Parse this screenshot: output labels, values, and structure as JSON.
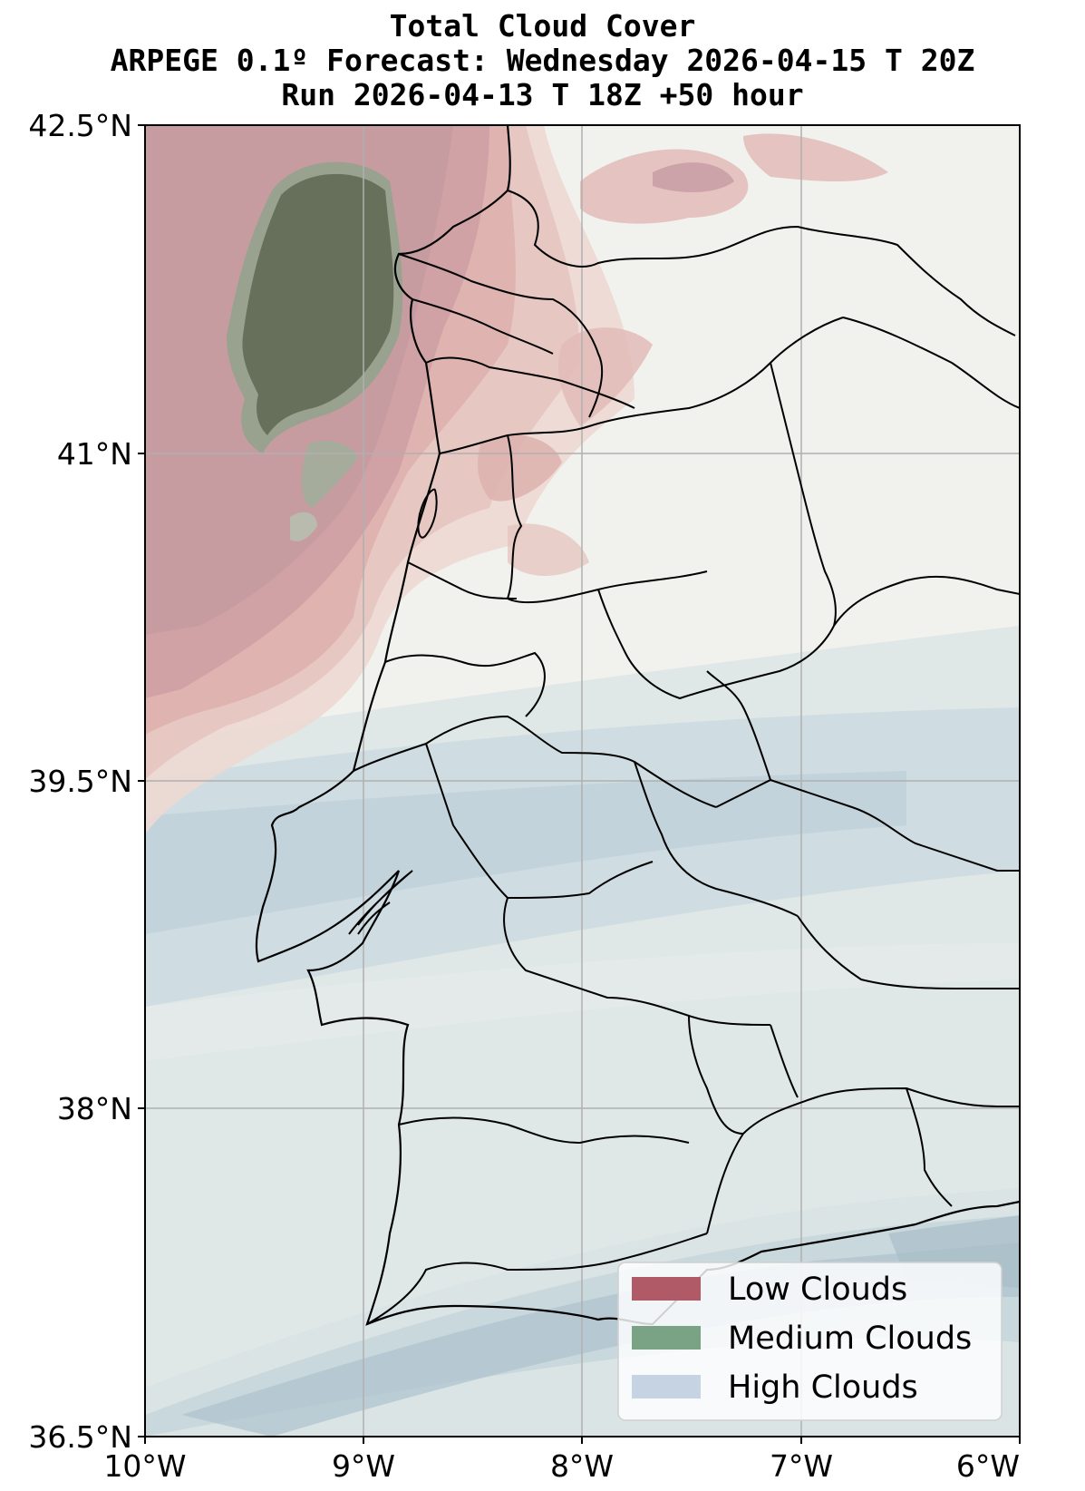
{
  "title": {
    "line1": "Total Cloud Cover",
    "line2": "ARPEGE 0.1º Forecast: Wednesday 2026-04-15 T 20Z",
    "line3": "Run 2026-04-13 T 18Z +50 hour"
  },
  "axes": {
    "lat_ticks": [
      "42.5°N",
      "41°N",
      "39.5°N",
      "38°N",
      "36.5°N"
    ],
    "lon_ticks": [
      "10°W",
      "9°W",
      "8°W",
      "7°W",
      "6°W"
    ],
    "lat_range": [
      36.5,
      42.5
    ],
    "lon_range": [
      -10,
      -6
    ],
    "grid": true
  },
  "legend": {
    "placement": "bottom-right",
    "items": [
      {
        "label": "Low Clouds",
        "color": "#b05a68"
      },
      {
        "label": "Medium Clouds",
        "color": "#7aa386"
      },
      {
        "label": "High Clouds",
        "color": "#c5d3e3"
      }
    ]
  },
  "colors": {
    "land_background": "#f1f2ee",
    "low_cloud": "#c98f92",
    "medium_cloud": "#66705b",
    "high_cloud": "#c8d6db",
    "borders": "#000000",
    "grid": "#b0b0b0"
  }
}
